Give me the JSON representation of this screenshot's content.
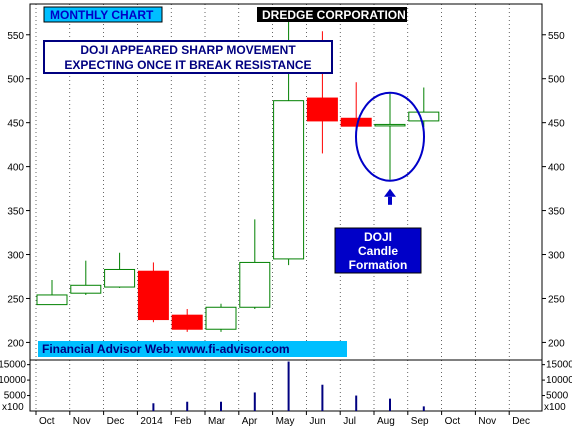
{
  "chart_data": {
    "type": "candlestick",
    "title": "DREDGE CORPORATION",
    "period_label": "MONTHLY CHART",
    "annotation": "DOJI APPEARED SHARP MOVEMENT\nEXPECTING ONCE IT BREAK RESISTANCE",
    "callout": "DOJI\nCandle\nFormation",
    "footer": "Financial Advisor Web: www.fi-advisor.com",
    "price_axis": {
      "ylim": [
        180,
        585
      ],
      "ticks": [
        200,
        250,
        300,
        350,
        400,
        450,
        500,
        550
      ]
    },
    "volume_axis": {
      "ylim": [
        0,
        16500
      ],
      "ticks": [
        5000,
        10000,
        15000
      ],
      "multiplier_label": "x100"
    },
    "x_labels": [
      "Oct",
      "Nov",
      "Dec",
      "2014",
      "Feb",
      "Mar",
      "Apr",
      "May",
      "Jun",
      "Jul",
      "Aug",
      "Sep",
      "Oct",
      "Nov",
      "Dec"
    ],
    "candles": [
      {
        "month": "Oct",
        "open": 243,
        "high": 271,
        "low": 243,
        "close": 254
      },
      {
        "month": "Nov",
        "open": 256,
        "high": 293,
        "low": 254,
        "close": 265
      },
      {
        "month": "Dec",
        "open": 263,
        "high": 302,
        "low": 262,
        "close": 283
      },
      {
        "month": "2014",
        "open": 281,
        "high": 291,
        "low": 223,
        "close": 226
      },
      {
        "month": "Feb",
        "open": 231,
        "high": 238,
        "low": 212,
        "close": 215
      },
      {
        "month": "Mar",
        "open": 215,
        "high": 244,
        "low": 212,
        "close": 240
      },
      {
        "month": "Apr",
        "open": 240,
        "high": 340,
        "low": 238,
        "close": 291
      },
      {
        "month": "May",
        "open": 295,
        "high": 568,
        "low": 288,
        "close": 475
      },
      {
        "month": "Jun",
        "open": 478,
        "high": 554,
        "low": 415,
        "close": 452
      },
      {
        "month": "Jul",
        "open": 455,
        "high": 496,
        "low": 432,
        "close": 446
      },
      {
        "month": "Aug",
        "open": 447,
        "high": 483,
        "low": 385,
        "close": 448
      },
      {
        "month": "Sep",
        "open": 452,
        "high": 490,
        "low": 445,
        "close": 462
      }
    ],
    "volume": [
      0,
      0,
      0,
      2500,
      3000,
      3000,
      6000,
      16000,
      8500,
      5000,
      4000,
      1500
    ],
    "colors": {
      "up_body": "#ffffff",
      "up_edge": "#008000",
      "down_body": "#ff0000",
      "down_edge": "#ff0000",
      "volume": "#000080",
      "label_bg": "#00bfff",
      "title_bg": "#000000",
      "callout_bg": "#0000c8",
      "circle": "#0000c8",
      "arrow": "#0000c8",
      "annotation_border": "#000080"
    }
  }
}
